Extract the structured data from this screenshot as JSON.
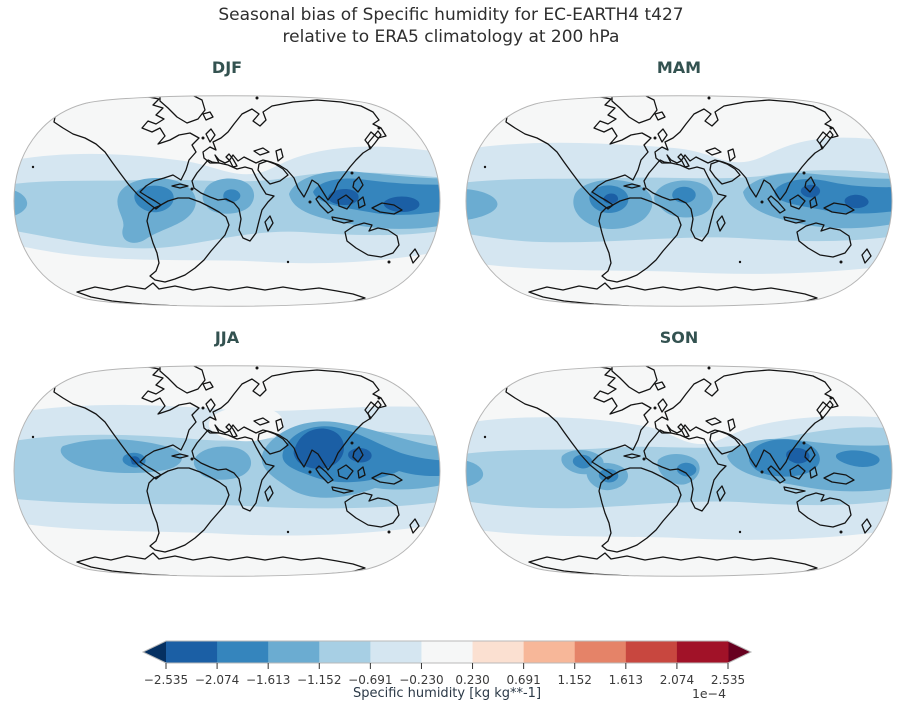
{
  "figure": {
    "title_line1": "Seasonal bias of Specific humidity for EC-EARTH4 t427",
    "title_line2": "relative to ERA5 climatology at 200 hPa"
  },
  "panels": [
    {
      "id": "djf",
      "label": "DJF"
    },
    {
      "id": "mam",
      "label": "MAM"
    },
    {
      "id": "jja",
      "label": "JJA"
    },
    {
      "id": "son",
      "label": "SON"
    }
  ],
  "colorbar": {
    "ticks": [
      "−2.535",
      "−2.074",
      "−1.613",
      "−1.152",
      "−0.691",
      "−0.230",
      "0.230",
      "0.691",
      "1.152",
      "1.613",
      "2.074",
      "2.535"
    ],
    "label": "Specific humidity [kg kg**-1]",
    "scale_note": "1e−4",
    "segment_colors": [
      "#1b5fa5",
      "#3585bd",
      "#6bacd1",
      "#a7cfe4",
      "#d5e6f1",
      "#f6f7f7",
      "#fbe0d1",
      "#f7b799",
      "#e58368",
      "#c8473f",
      "#a11228"
    ],
    "under_arrow_color": "#053061",
    "over_arrow_color": "#67001f",
    "outline_color": "#b9b9b9",
    "tick_color": "#333333",
    "tick_label_color": "#3a3a3a"
  },
  "map_colors": {
    "background": "#f6f7f7",
    "levels": [
      "#d5e6f1",
      "#a7cfe4",
      "#6bacd1",
      "#3585bd",
      "#1b5fa5"
    ],
    "coastline": "#141414",
    "globe_border": "#b5b5b5"
  },
  "chart_data": {
    "type": "heatmap",
    "title": "Seasonal bias of Specific humidity for EC-EARTH4 t427 relative to ERA5 climatology at 200 hPa",
    "projection": "Robinson world maps, 2x2 grid of seasons",
    "variable": "Specific humidity",
    "units": "kg kg**-1",
    "scale_factor": 0.0001,
    "seasons": [
      "DJF",
      "MAM",
      "JJA",
      "SON"
    ],
    "colorbar_level_bounds": [
      -2.535,
      -2.074,
      -1.613,
      -1.152,
      -0.691,
      -0.23,
      0.23,
      0.691,
      1.152,
      1.613,
      2.074,
      2.535
    ],
    "colormap": "RdBu; blue = negative (dry) bias, red = positive bias; arrows for out-of-range values",
    "legend_position": "horizontal colorbar at bottom center",
    "season_summaries": {
      "DJF": "Negative bias band across tropics/subtropics; strongest (≈ −1.6 to −2.5e−4) over Maritime Continent and western Pacific, with secondary cores over the Amazon, central Africa and eastern Pacific edge; high latitudes near zero.",
      "MAM": "Similar tropical negative-bias band, slightly broader; cores (≈ −1.6 to −2.3e−4) over Amazon, central Africa, Philippines/New Guinea region.",
      "JJA": "Strongest negative bias of all seasons centered on India/Southeast Asia (≈ −2.0 to −2.5e−4), extending across subtropical North Pacific; near-zero patch over Mediterranean/Middle East; Southern Hemisphere weak.",
      "SON": "Negative-bias band over tropics and NH subtropics; cores over Bay of Bengal/Indochina (≈ −1.6 to −2.3e−4), central Africa, Amazon and Central America; southern high latitudes near zero."
    }
  }
}
